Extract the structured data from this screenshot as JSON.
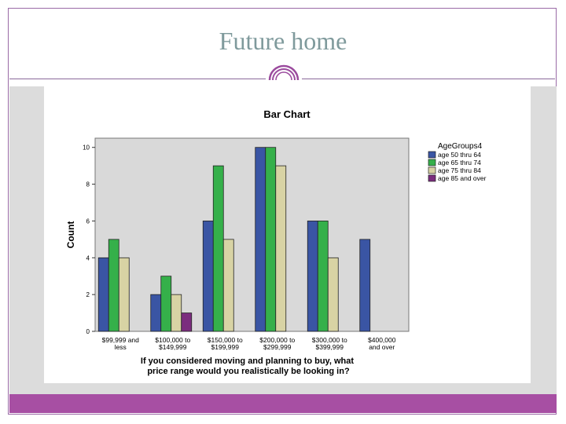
{
  "slide": {
    "title": "Future home"
  },
  "colors": {
    "accent": "#a74fa3",
    "title": "#7f9a9c",
    "plot_bg": "#d9d9d9"
  },
  "chart_data": {
    "type": "bar",
    "title": "Bar Chart",
    "xlabel": "If you considered moving and planning to buy, what price range would you realistically be looking in?",
    "ylabel": "Count",
    "ylim": [
      0,
      10.5
    ],
    "yticks": [
      0,
      2,
      4,
      6,
      8,
      10
    ],
    "legend_title": "AgeGroups4",
    "legend_position": "right",
    "categories": [
      [
        "$99,999 and",
        "less"
      ],
      [
        "$100,000 to",
        "$149,999"
      ],
      [
        "$150,000 to",
        "$199,999"
      ],
      [
        "$200,000 to",
        "$299,999"
      ],
      [
        "$300,000 to",
        "$399,999"
      ],
      [
        "$400,000",
        "and over"
      ]
    ],
    "series": [
      {
        "name": "age 50 thru 64",
        "color": "#3a55a4",
        "values": [
          4,
          2,
          6,
          10,
          6,
          5
        ]
      },
      {
        "name": "age 65 thru 74",
        "color": "#35b04a",
        "values": [
          5,
          3,
          9,
          10,
          6,
          0
        ]
      },
      {
        "name": "age 75 thru 84",
        "color": "#d8d3a4",
        "values": [
          4,
          2,
          5,
          9,
          4,
          0
        ]
      },
      {
        "name": "age 85 and over",
        "color": "#7b2d7e",
        "values": [
          0,
          1,
          0,
          0,
          0,
          0
        ]
      }
    ]
  }
}
